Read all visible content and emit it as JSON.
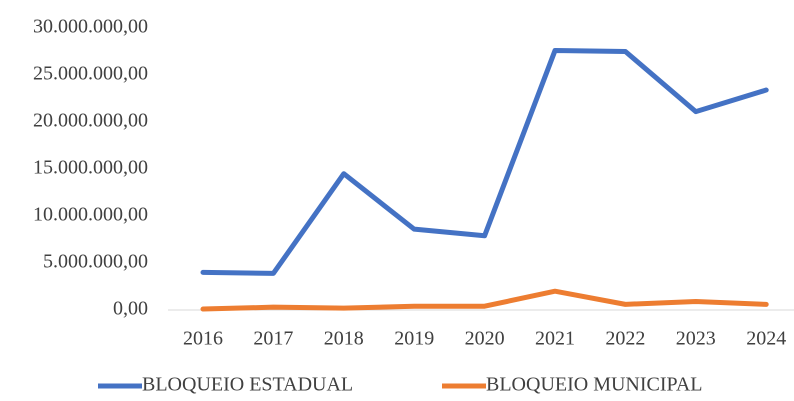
{
  "chart_data": {
    "type": "line",
    "categories": [
      "2016",
      "2017",
      "2018",
      "2019",
      "2020",
      "2021",
      "2022",
      "2023",
      "2024"
    ],
    "series": [
      {
        "name": "BLOQUEIO ESTADUAL",
        "color": "#4472c4",
        "values": [
          4000000,
          3900000,
          14500000,
          8600000,
          7900000,
          27600000,
          27500000,
          21100000,
          23400000
        ]
      },
      {
        "name": "BLOQUEIO MUNICIPAL",
        "color": "#ed7d31",
        "values": [
          100000,
          300000,
          200000,
          400000,
          400000,
          2000000,
          600000,
          900000,
          600000
        ]
      }
    ],
    "ylim": [
      0,
      30000000
    ],
    "yticks": [
      {
        "value": 0,
        "label": "0,00"
      },
      {
        "value": 5000000,
        "label": "5.000.000,00"
      },
      {
        "value": 10000000,
        "label": "10.000.000,00"
      },
      {
        "value": 15000000,
        "label": "15.000.000,00"
      },
      {
        "value": 20000000,
        "label": "20.000.000,00"
      },
      {
        "value": 25000000,
        "label": "25.000.000,00"
      },
      {
        "value": 30000000,
        "label": "30.000.000,00"
      }
    ],
    "grid": false,
    "legend": "bottom"
  }
}
